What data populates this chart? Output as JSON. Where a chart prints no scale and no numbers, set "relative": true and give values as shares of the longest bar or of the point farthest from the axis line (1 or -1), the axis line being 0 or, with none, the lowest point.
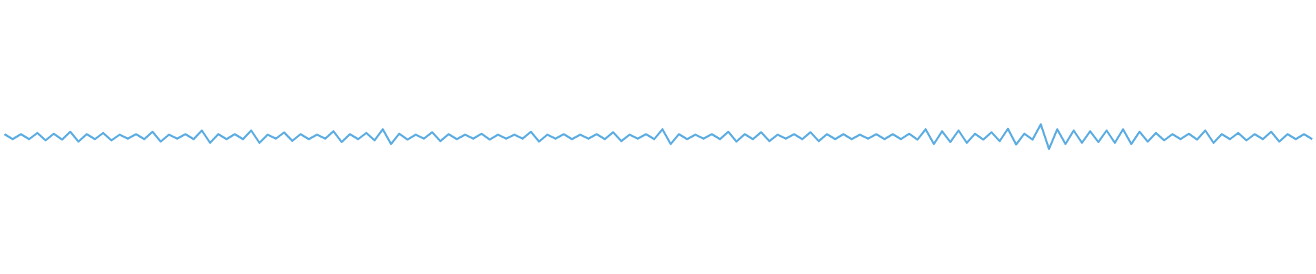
{
  "chart_data": {
    "type": "line",
    "relative": true,
    "grid": false,
    "categories": [
      null,
      null,
      null,
      null,
      null,
      null,
      null,
      null,
      null,
      null,
      null,
      null,
      null,
      null,
      null,
      null,
      null,
      null,
      null,
      null,
      null,
      null,
      null,
      null,
      null,
      null,
      null,
      null,
      null,
      null,
      null,
      null,
      null,
      null,
      null,
      null,
      null,
      null,
      null,
      null,
      null,
      null,
      null,
      null,
      null,
      null,
      null,
      null,
      null,
      null,
      null,
      null,
      null,
      null,
      null,
      null,
      null,
      null,
      null,
      null,
      null,
      null,
      null,
      null,
      null,
      null,
      null,
      null,
      null,
      null,
      null,
      null,
      null,
      null,
      null,
      null,
      null,
      null,
      null,
      null,
      null,
      null,
      null,
      null,
      null,
      null,
      null,
      null,
      null,
      null,
      null,
      null,
      null,
      null,
      null,
      null,
      null,
      null,
      null,
      null,
      null,
      null,
      null,
      null,
      null,
      null,
      null,
      null,
      null,
      null,
      null,
      null,
      null,
      null,
      null,
      null,
      null,
      null,
      null,
      null,
      null,
      null,
      null,
      null,
      null,
      null,
      null,
      null,
      null,
      null,
      null,
      null,
      null,
      null,
      null,
      null,
      null,
      null,
      null,
      null,
      null,
      null,
      null,
      null,
      null,
      null,
      null,
      null,
      null,
      null,
      null,
      null,
      null,
      null,
      null,
      null,
      null,
      null,
      null,
      null
    ],
    "series": [
      {
        "color": "#5dade2",
        "values": [
          0.6,
          0.4,
          0.6,
          0.4,
          0.65,
          0.35,
          0.62,
          0.38,
          0.7,
          0.3,
          0.6,
          0.4,
          0.65,
          0.35,
          0.58,
          0.42,
          0.6,
          0.4,
          0.7,
          0.3,
          0.58,
          0.42,
          0.6,
          0.4,
          0.75,
          0.25,
          0.6,
          0.4,
          0.6,
          0.4,
          0.75,
          0.25,
          0.58,
          0.42,
          0.67,
          0.33,
          0.6,
          0.4,
          0.58,
          0.42,
          0.72,
          0.28,
          0.6,
          0.4,
          0.65,
          0.35,
          0.8,
          0.2,
          0.62,
          0.38,
          0.58,
          0.42,
          0.68,
          0.32,
          0.6,
          0.4,
          0.58,
          0.42,
          0.62,
          0.38,
          0.58,
          0.42,
          0.58,
          0.42,
          0.7,
          0.3,
          0.58,
          0.42,
          0.6,
          0.4,
          0.58,
          0.42,
          0.6,
          0.4,
          0.68,
          0.32,
          0.58,
          0.42,
          0.6,
          0.4,
          0.8,
          0.2,
          0.6,
          0.4,
          0.58,
          0.42,
          0.6,
          0.4,
          0.7,
          0.3,
          0.6,
          0.4,
          0.68,
          0.32,
          0.58,
          0.42,
          0.6,
          0.4,
          0.68,
          0.32,
          0.6,
          0.4,
          0.6,
          0.4,
          0.58,
          0.42,
          0.6,
          0.4,
          0.6,
          0.4,
          0.62,
          0.38,
          0.8,
          0.2,
          0.72,
          0.28,
          0.75,
          0.25,
          0.62,
          0.38,
          0.68,
          0.32,
          0.82,
          0.18,
          0.62,
          0.38,
          1,
          0,
          0.8,
          0.2,
          0.75,
          0.25,
          0.72,
          0.28,
          0.75,
          0.25,
          0.8,
          0.2,
          0.7,
          0.3,
          0.65,
          0.35,
          0.6,
          0.4,
          0.62,
          0.38,
          0.75,
          0.25,
          0.6,
          0.4,
          0.65,
          0.35,
          0.6,
          0.4,
          0.7,
          0.3,
          0.6,
          0.4,
          0.6,
          0.4
        ]
      }
    ]
  }
}
